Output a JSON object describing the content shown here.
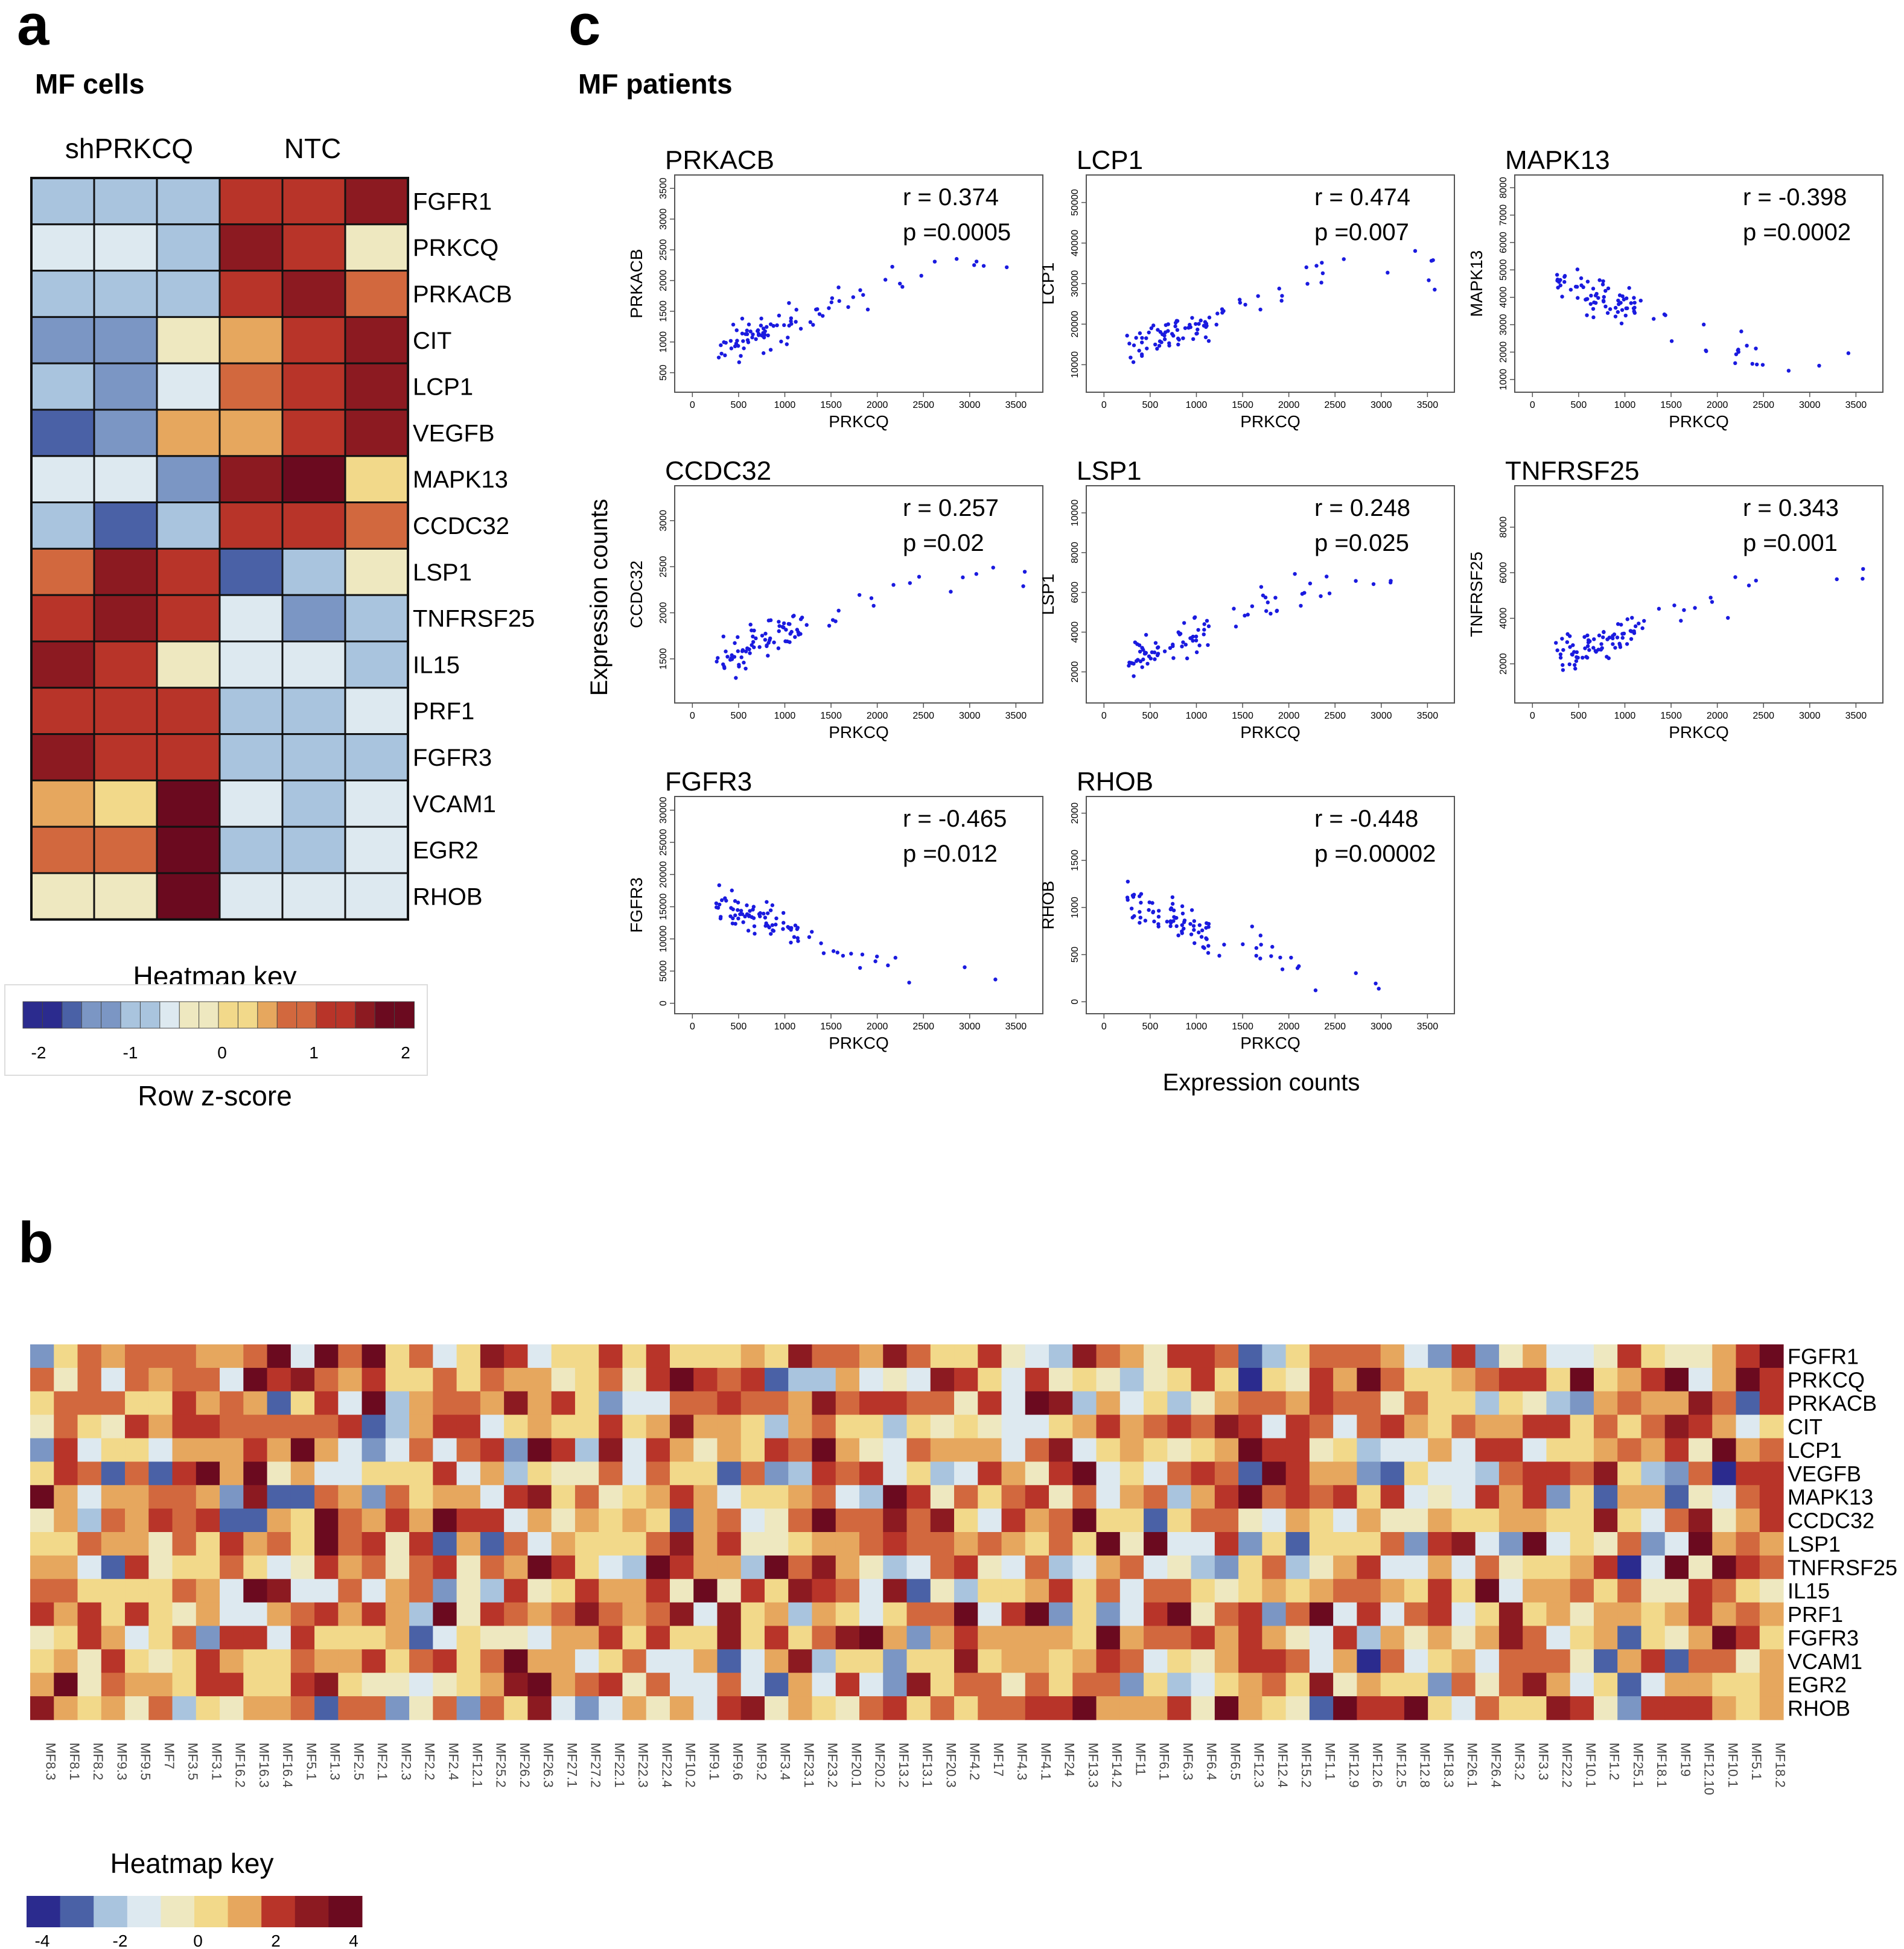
{
  "panels": {
    "a": {
      "letter": "a",
      "title": "MF cells"
    },
    "b": {
      "letter": "b"
    },
    "c": {
      "letter": "c",
      "title": "MF patients"
    }
  },
  "heatmap_a_key": {
    "title": "Heatmap key",
    "label": "Row z-score",
    "ticks": [
      "-2",
      "-1",
      "0",
      "1",
      "2"
    ]
  },
  "heatmap_b_key": {
    "title": "Heatmap key",
    "ticks": [
      "-4",
      "-2",
      "0",
      "2",
      "4"
    ]
  },
  "scatter_shared": {
    "ylabel": "Expression counts",
    "xlabel": "Expression counts"
  },
  "colors": {
    "scale": [
      "#2b2b8e",
      "#4a61a6",
      "#7b96c4",
      "#a9c4de",
      "#dde9f0",
      "#eee8c0",
      "#f2d98a",
      "#e6a75e",
      "#d2683e",
      "#b83429",
      "#8c1a21",
      "#6b0a1f"
    ],
    "scatter_point": "#1a1adf"
  },
  "chart_data": [
    {
      "type": "heatmap",
      "id": "a",
      "title": "MF cells",
      "group_labels": [
        "shPRKCQ",
        "NTC"
      ],
      "rows": [
        "FGFR1",
        "PRKCQ",
        "PRKACB",
        "CIT",
        "LCP1",
        "VEGFB",
        "MAPK13",
        "CCDC32",
        "LSP1",
        "TNFRSF25",
        "IL15",
        "PRF1",
        "FGFR3",
        "VCAM1",
        "EGR2",
        "RHOB"
      ],
      "values": [
        [
          -1.0,
          -1.0,
          -1.0,
          1.0,
          1.0,
          1.6
        ],
        [
          -0.6,
          -0.6,
          -0.8,
          1.6,
          1.3,
          -0.1
        ],
        [
          -0.8,
          -0.8,
          -0.8,
          1.3,
          1.4,
          0.8
        ],
        [
          -1.2,
          -1.2,
          -0.3,
          0.6,
          1.1,
          1.6
        ],
        [
          -1.0,
          -1.2,
          -0.6,
          0.9,
          1.3,
          1.4
        ],
        [
          -1.6,
          -1.2,
          0.4,
          0.5,
          1.2,
          1.4
        ],
        [
          -0.6,
          -0.6,
          -1.2,
          1.4,
          1.7,
          0.2
        ],
        [
          -0.7,
          -1.4,
          -0.7,
          1.3,
          1.3,
          0.8
        ],
        [
          0.8,
          1.4,
          1.0,
          -1.5,
          -0.8,
          -0.2
        ],
        [
          1.0,
          1.6,
          1.0,
          -0.6,
          -1.1,
          -0.8
        ],
        [
          1.6,
          1.3,
          -0.2,
          -0.6,
          -0.6,
          -1.0
        ],
        [
          1.3,
          1.3,
          1.3,
          -1.0,
          -0.9,
          -0.6
        ],
        [
          1.4,
          1.3,
          1.3,
          -0.7,
          -0.8,
          -0.8
        ],
        [
          0.6,
          0.3,
          2.0,
          -0.6,
          -0.8,
          -0.5
        ],
        [
          0.8,
          0.8,
          1.8,
          -1.0,
          -1.0,
          -0.4
        ],
        [
          -0.3,
          -0.3,
          2.3,
          -0.6,
          -0.6,
          -0.6
        ]
      ],
      "colorbar": {
        "min": -2,
        "max": 2,
        "label": "Row z-score"
      }
    },
    {
      "type": "scatter",
      "id": "c",
      "title": "MF patients",
      "xlabel": "PRKCQ",
      "shared_ylabel": "Expression counts",
      "shared_xlabel": "Expression counts",
      "xlim": [
        0,
        3600
      ],
      "xticks": [
        0,
        500,
        1000,
        1500,
        2000,
        2500,
        3000,
        3500
      ],
      "point_count_per_plot": 90,
      "plots": [
        {
          "gene": "PRKACB",
          "r": "r = 0.374",
          "p": "p =0.0005",
          "ylabel": "PRKACB",
          "yticks": [
            500,
            1000,
            1500,
            2000,
            2500,
            3000,
            3500
          ],
          "ylim": [
            300,
            3600
          ],
          "trend": "positive"
        },
        {
          "gene": "LCP1",
          "r": "r = 0.474",
          "p": "p =0.007",
          "ylabel": "LCP1",
          "yticks": [
            10000,
            20000,
            30000,
            40000,
            50000
          ],
          "ylim": [
            5000,
            55000
          ],
          "trend": "positive"
        },
        {
          "gene": "MAPK13",
          "r": "r = -0.398",
          "p": "p =0.0002",
          "ylabel": "MAPK13",
          "yticks": [
            1000,
            2000,
            3000,
            4000,
            5000,
            6000,
            7000,
            8000
          ],
          "ylim": [
            800,
            8200
          ],
          "trend": "negative"
        },
        {
          "gene": "CCDC32",
          "r": "r = 0.257",
          "p": "p =0.02",
          "ylabel": "CCDC32",
          "yticks": [
            1500,
            2000,
            2500,
            3000
          ],
          "ylim": [
            1100,
            3300
          ],
          "trend": "positive"
        },
        {
          "gene": "LSP1",
          "r": "r = 0.248",
          "p": "p =0.025",
          "ylabel": "LSP1",
          "yticks": [
            2000,
            4000,
            6000,
            8000,
            10000
          ],
          "ylim": [
            800,
            11000
          ],
          "trend": "positive"
        },
        {
          "gene": "TNFRSF25",
          "r": "r = 0.343",
          "p": "p =0.001",
          "ylabel": "TNFRSF25",
          "yticks": [
            2000,
            4000,
            6000,
            8000
          ],
          "ylim": [
            600,
            9500
          ],
          "trend": "positive"
        },
        {
          "gene": "FGFR3",
          "r": "r = -0.465",
          "p": "p =0.012",
          "ylabel": "FGFR3",
          "yticks": [
            0,
            5000,
            10000,
            15000,
            20000,
            25000,
            30000
          ],
          "ylim": [
            -500,
            31000
          ],
          "trend": "negative"
        },
        {
          "gene": "RHOB",
          "r": "r = -0.448",
          "p": "p =0.00002",
          "ylabel": "RHOB",
          "yticks": [
            0,
            500,
            1000,
            1500,
            2000
          ],
          "ylim": [
            -50,
            2100
          ],
          "trend": "negative"
        }
      ]
    },
    {
      "type": "heatmap",
      "id": "b",
      "rows": [
        "FGFR1",
        "PRKCQ",
        "PRKACB",
        "CIT",
        "LCP1",
        "VEGFB",
        "MAPK13",
        "CCDC32",
        "LSP1",
        "TNFRSF25",
        "IL15",
        "PRF1",
        "FGFR3",
        "VCAM1",
        "EGR2",
        "RHOB"
      ],
      "columns": [
        "MF8.3",
        "MF8.1",
        "MF8.2",
        "MF9.3",
        "MF9.5",
        "MF7",
        "MF3.5",
        "MF3.1",
        "MF16.2",
        "MF16.3",
        "MF16.4",
        "MF5.1",
        "MF1.3",
        "MF2.5",
        "MF2.1",
        "MF2.3",
        "MF2.2",
        "MF2.4",
        "MF12.1",
        "MF25.2",
        "MF26.2",
        "MF26.3",
        "MF27.1",
        "MF27.2",
        "MF22.1",
        "MF22.3",
        "MF22.4",
        "MF10.2",
        "MF9.1",
        "MF9.6",
        "MF9.2",
        "MF3.4",
        "MF23.1",
        "MF23.2",
        "MF20.1",
        "MF20.2",
        "MF13.2",
        "MF13.1",
        "MF20.3",
        "MF4.2",
        "MF17",
        "MF4.3",
        "MF4.1",
        "MF24",
        "MF13.3",
        "MF14.2",
        "MF11",
        "MF6.1",
        "MF6.3",
        "MF6.4",
        "MF6.5",
        "MF12.3",
        "MF12.4",
        "MF15.2",
        "MF1.1",
        "MF12.9",
        "MF12.6",
        "MF12.5",
        "MF12.8",
        "MF18.3",
        "MF26.1",
        "MF26.4",
        "MF3.2",
        "MF3.3",
        "MF22.2",
        "MF10.1",
        "MF1.2",
        "MF25.1",
        "MF18.1",
        "MF19",
        "MF12.10",
        "MF10.1",
        "MF5.1",
        "MF18.2"
      ],
      "colorbar": {
        "min": -4,
        "max": 4
      }
    }
  ]
}
